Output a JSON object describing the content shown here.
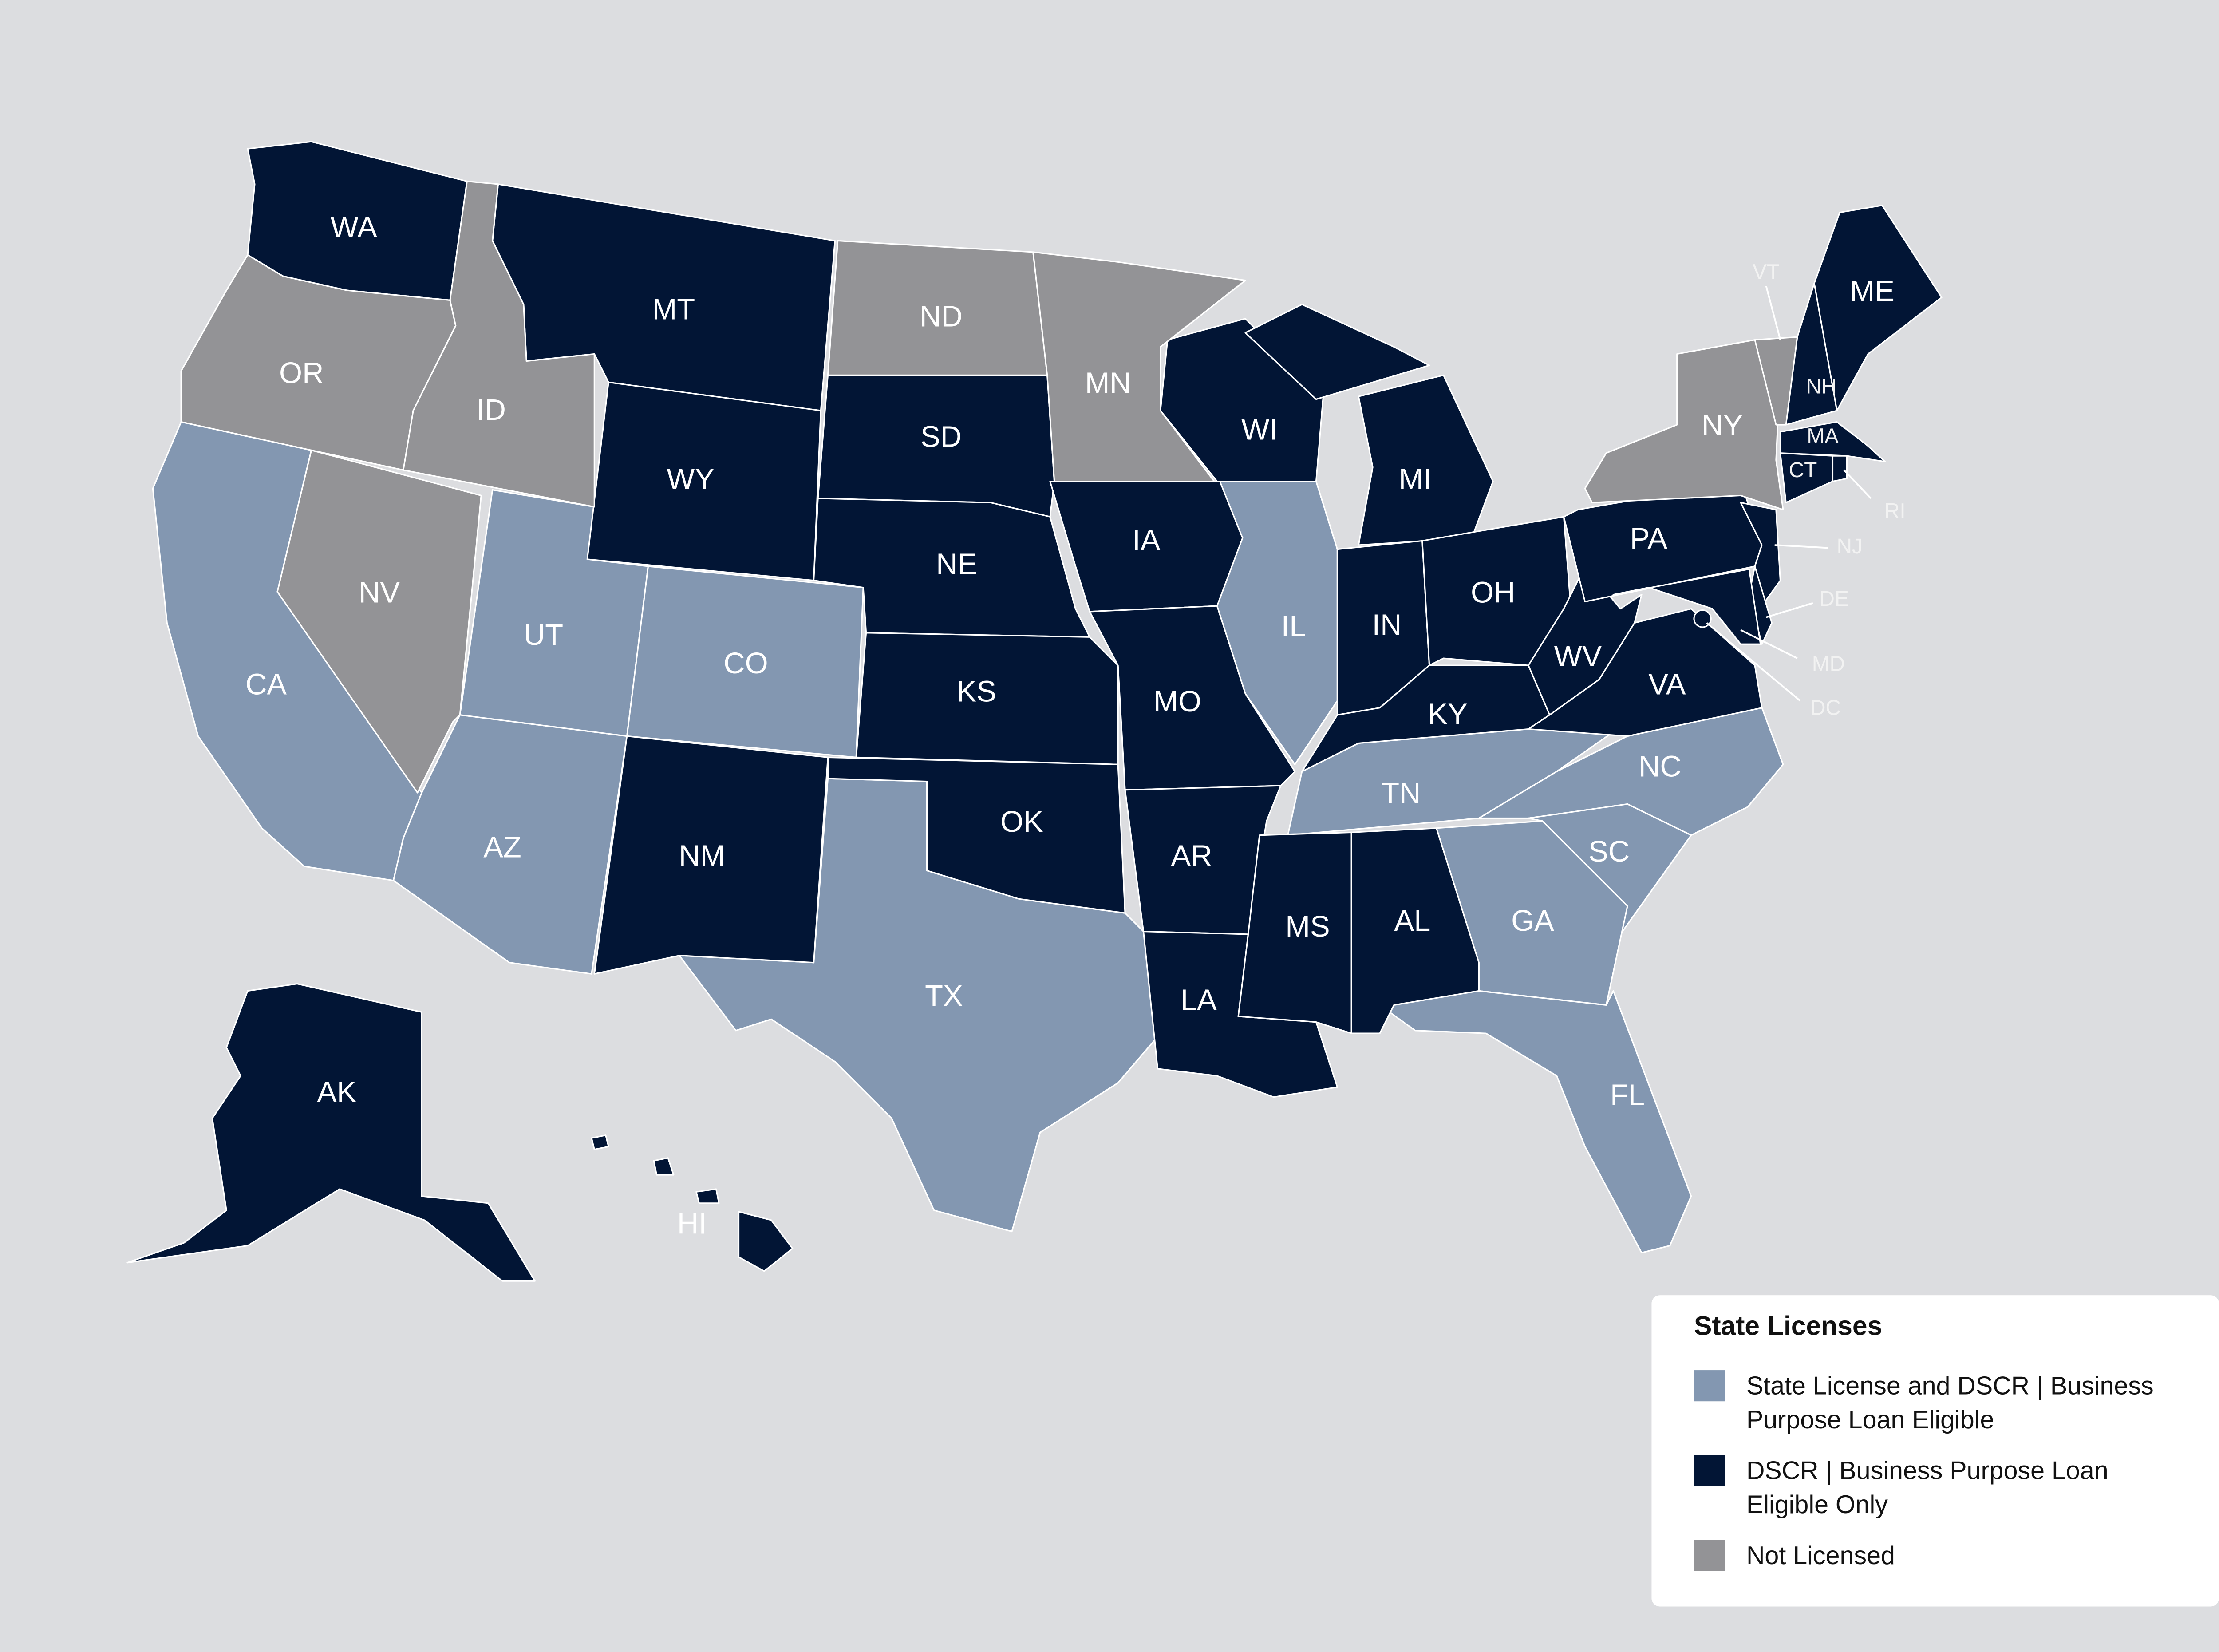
{
  "legend": {
    "title": "State Licenses",
    "items": [
      {
        "label": "State License and DSCR | Business Purpose Loan Eligible",
        "color": "#8397b1",
        "states": [
          "CA",
          "AZ",
          "UT",
          "CO",
          "TX",
          "IL",
          "TN",
          "NC",
          "SC",
          "GA",
          "FL"
        ]
      },
      {
        "label": "DSCR | Business Purpose Loan Eligible Only",
        "color": "#021535",
        "states": [
          "WA",
          "MT",
          "WY",
          "SD",
          "NE",
          "KS",
          "OK",
          "NM",
          "IA",
          "MO",
          "AR",
          "LA",
          "MS",
          "AL",
          "WI",
          "MI",
          "IN",
          "OH",
          "KY",
          "WV",
          "VA",
          "PA",
          "NJ",
          "DE",
          "MD",
          "DC",
          "CT",
          "RI",
          "MA",
          "NH",
          "ME",
          "AK",
          "HI"
        ]
      },
      {
        "label": "Not Licensed",
        "color": "#939396",
        "states": [
          "OR",
          "ID",
          "NV",
          "ND",
          "MN",
          "NY",
          "VT"
        ]
      }
    ]
  }
}
